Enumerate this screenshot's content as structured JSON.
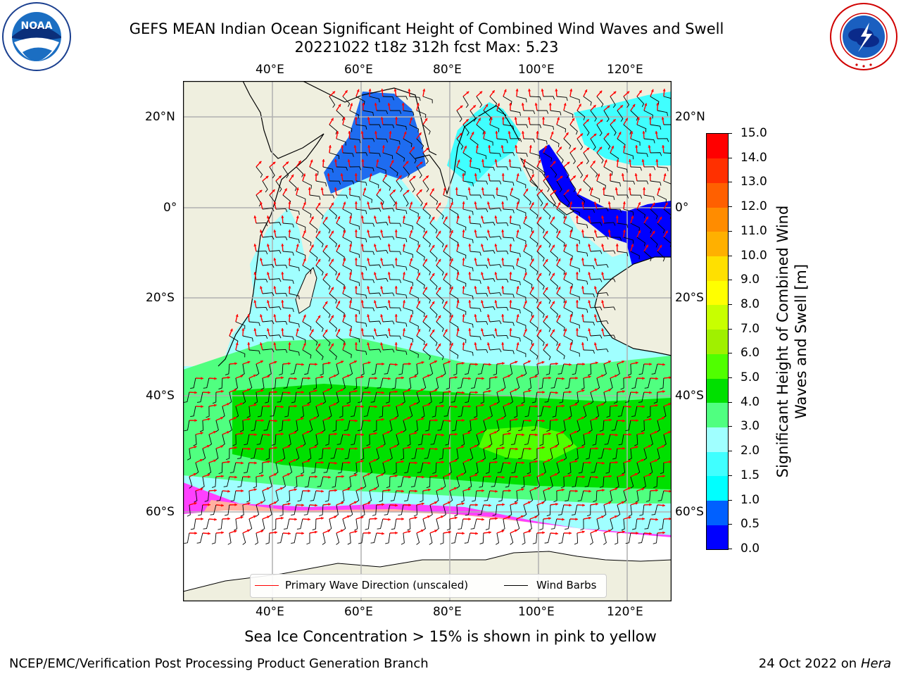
{
  "title": {
    "line1": "GEFS MEAN Indian Ocean Significant Height of Combined Wind Waves and Swell",
    "line2": "20221022 t18z 312h fcst   Max: 5.23"
  },
  "logos": {
    "noaa": {
      "text": "NOAA",
      "ring_text": "NATIONAL OCEANIC AND ATMOSPHERIC ADMINISTRATION · U.S. DEPARTMENT OF COMMERCE"
    },
    "nws": {
      "ring_text": "NATIONAL WEATHER SERVICE"
    }
  },
  "map": {
    "lon_labels": [
      "40°E",
      "60°E",
      "80°E",
      "100°E",
      "120°E"
    ],
    "lon_values": [
      40,
      60,
      80,
      100,
      120
    ],
    "lat_labels": [
      "20°N",
      "0°",
      "20°S",
      "40°S",
      "60°S"
    ],
    "lat_values": [
      20,
      0,
      -20,
      -40,
      -60
    ],
    "lon_range": [
      20,
      130
    ],
    "lat_range": [
      28,
      -75
    ],
    "colors": {
      "land": "#efefdf",
      "sea_ice_white": "#ffffff",
      "grid": "#b0b0b0",
      "wave_arrow": "#ff0000",
      "wind_barb": "#000000"
    }
  },
  "legend": {
    "items": [
      {
        "label": "Primary Wave Direction (unscaled)",
        "color": "#ff0000"
      },
      {
        "label": "Wind Barbs",
        "color": "#000000"
      }
    ]
  },
  "colorbar": {
    "label": "Significant Height of Combined Wind Waves and Swell [m]",
    "tick_labels": [
      "0.0",
      "0.5",
      "1.0",
      "1.5",
      "2.0",
      "3.0",
      "4.0",
      "5.0",
      "6.0",
      "7.0",
      "8.0",
      "9.0",
      "10.0",
      "11.0",
      "12.0",
      "13.0",
      "14.0",
      "15.0"
    ],
    "bin_colors": [
      "#0000ff",
      "#0060ff",
      "#00ffff",
      "#40ffff",
      "#a0ffff",
      "#50ff80",
      "#00e000",
      "#50ff00",
      "#a0f000",
      "#c8ff00",
      "#ffff00",
      "#ffe000",
      "#ffb000",
      "#ff8c00",
      "#ff6000",
      "#ff3000",
      "#ff0000"
    ]
  },
  "sea_ice_note": "Sea Ice Concentration > 15% is shown in pink to yellow",
  "footer": {
    "left": "NCEP/EMC/Verification Post Processing Product Generation Branch",
    "right_prefix": "24 Oct 2022 on ",
    "right_machine": "Hera"
  }
}
